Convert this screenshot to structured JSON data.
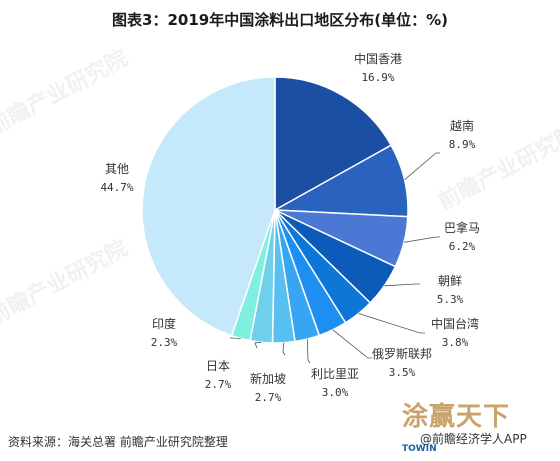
{
  "title": "图表3：2019年中国涂料出口地区分布(单位：%)",
  "source": "资料来源：海关总署 前瞻产业研究院整理",
  "watermark": "前瞻产业研究院",
  "brand": {
    "mark": "涂赢天下",
    "line": "@前瞻经济学人APP",
    "towin": "TOWIN"
  },
  "chart_data": {
    "type": "pie",
    "title": "图表3：2019年中国涂料出口地区分布(单位：%)",
    "unit": "%",
    "slices": [
      {
        "label": "中国香港",
        "value": 16.9,
        "display": "16.9%",
        "color": "#1a4fa3"
      },
      {
        "label": "越南",
        "value": 8.9,
        "display": "8.9%",
        "color": "#2a62c0"
      },
      {
        "label": "巴拿马",
        "value": 6.2,
        "display": "6.2%",
        "color": "#4a78d4"
      },
      {
        "label": "朝鲜",
        "value": 5.3,
        "display": "5.3%",
        "color": "#0c5bb8"
      },
      {
        "label": "中国台湾",
        "value": 3.8,
        "display": "3.8%",
        "color": "#0d76d6"
      },
      {
        "label": "俄罗斯联邦",
        "value": 3.5,
        "display": "3.5%",
        "color": "#1e8ff0"
      },
      {
        "label": "利比里亚",
        "value": 3.0,
        "display": "3.0%",
        "color": "#36a6f2"
      },
      {
        "label": "新加坡",
        "value": 2.7,
        "display": "2.7%",
        "color": "#58c0f0"
      },
      {
        "label": "日本",
        "value": 2.7,
        "display": "2.7%",
        "color": "#6fd0ec"
      },
      {
        "label": "印度",
        "value": 2.3,
        "display": "2.3%",
        "color": "#7ff0e0"
      },
      {
        "label": "其他",
        "value": 44.7,
        "display": "44.7%",
        "color": "#c5e8fb"
      }
    ]
  }
}
